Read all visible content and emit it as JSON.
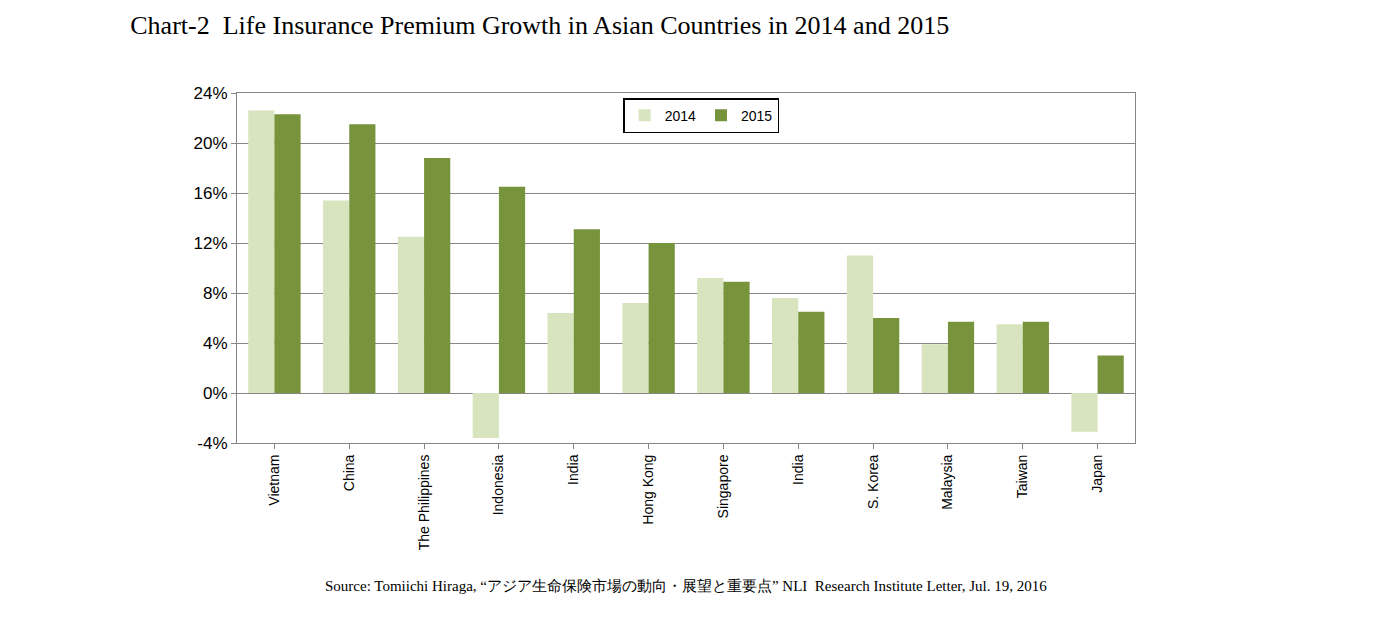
{
  "chart_data": {
    "type": "bar",
    "title": "Chart-2  Life Insurance Premium Growth in Asian Countries in 2014 and 2015",
    "annotations": [
      "Source: Tomiichi Hiraga, “アジア生命保険市場の動向・展望と重要点” NLI  Research Institute Letter, Jul. 19, 2016"
    ],
    "categories": [
      "Vietnam",
      "China",
      "The Philippines",
      "Indonesia",
      "India",
      "Hong Kong",
      "Singapore",
      "India",
      "S. Korea",
      "Malaysia",
      "Taiwan",
      "Japan"
    ],
    "series": [
      {
        "name": "2014",
        "color": "#d7e4bd",
        "values": [
          22.6,
          15.4,
          12.5,
          -3.6,
          6.4,
          7.2,
          9.2,
          7.6,
          11.0,
          3.9,
          5.5,
          -3.1
        ]
      },
      {
        "name": "2015",
        "color": "#77933c",
        "values": [
          22.3,
          21.5,
          18.8,
          16.5,
          13.1,
          12.0,
          8.9,
          6.5,
          6.0,
          5.7,
          5.7,
          3.0
        ]
      }
    ],
    "ylim": [
      -4,
      24
    ],
    "yticks": [
      {
        "value": -4,
        "label": "-4%"
      },
      {
        "value": 0,
        "label": "0%"
      },
      {
        "value": 4,
        "label": "4%"
      },
      {
        "value": 8,
        "label": "8%"
      },
      {
        "value": 12,
        "label": "12%"
      },
      {
        "value": 16,
        "label": "16%"
      },
      {
        "value": 20,
        "label": "20%"
      },
      {
        "value": 24,
        "label": "24%"
      }
    ],
    "grid": true,
    "legend": "top"
  }
}
